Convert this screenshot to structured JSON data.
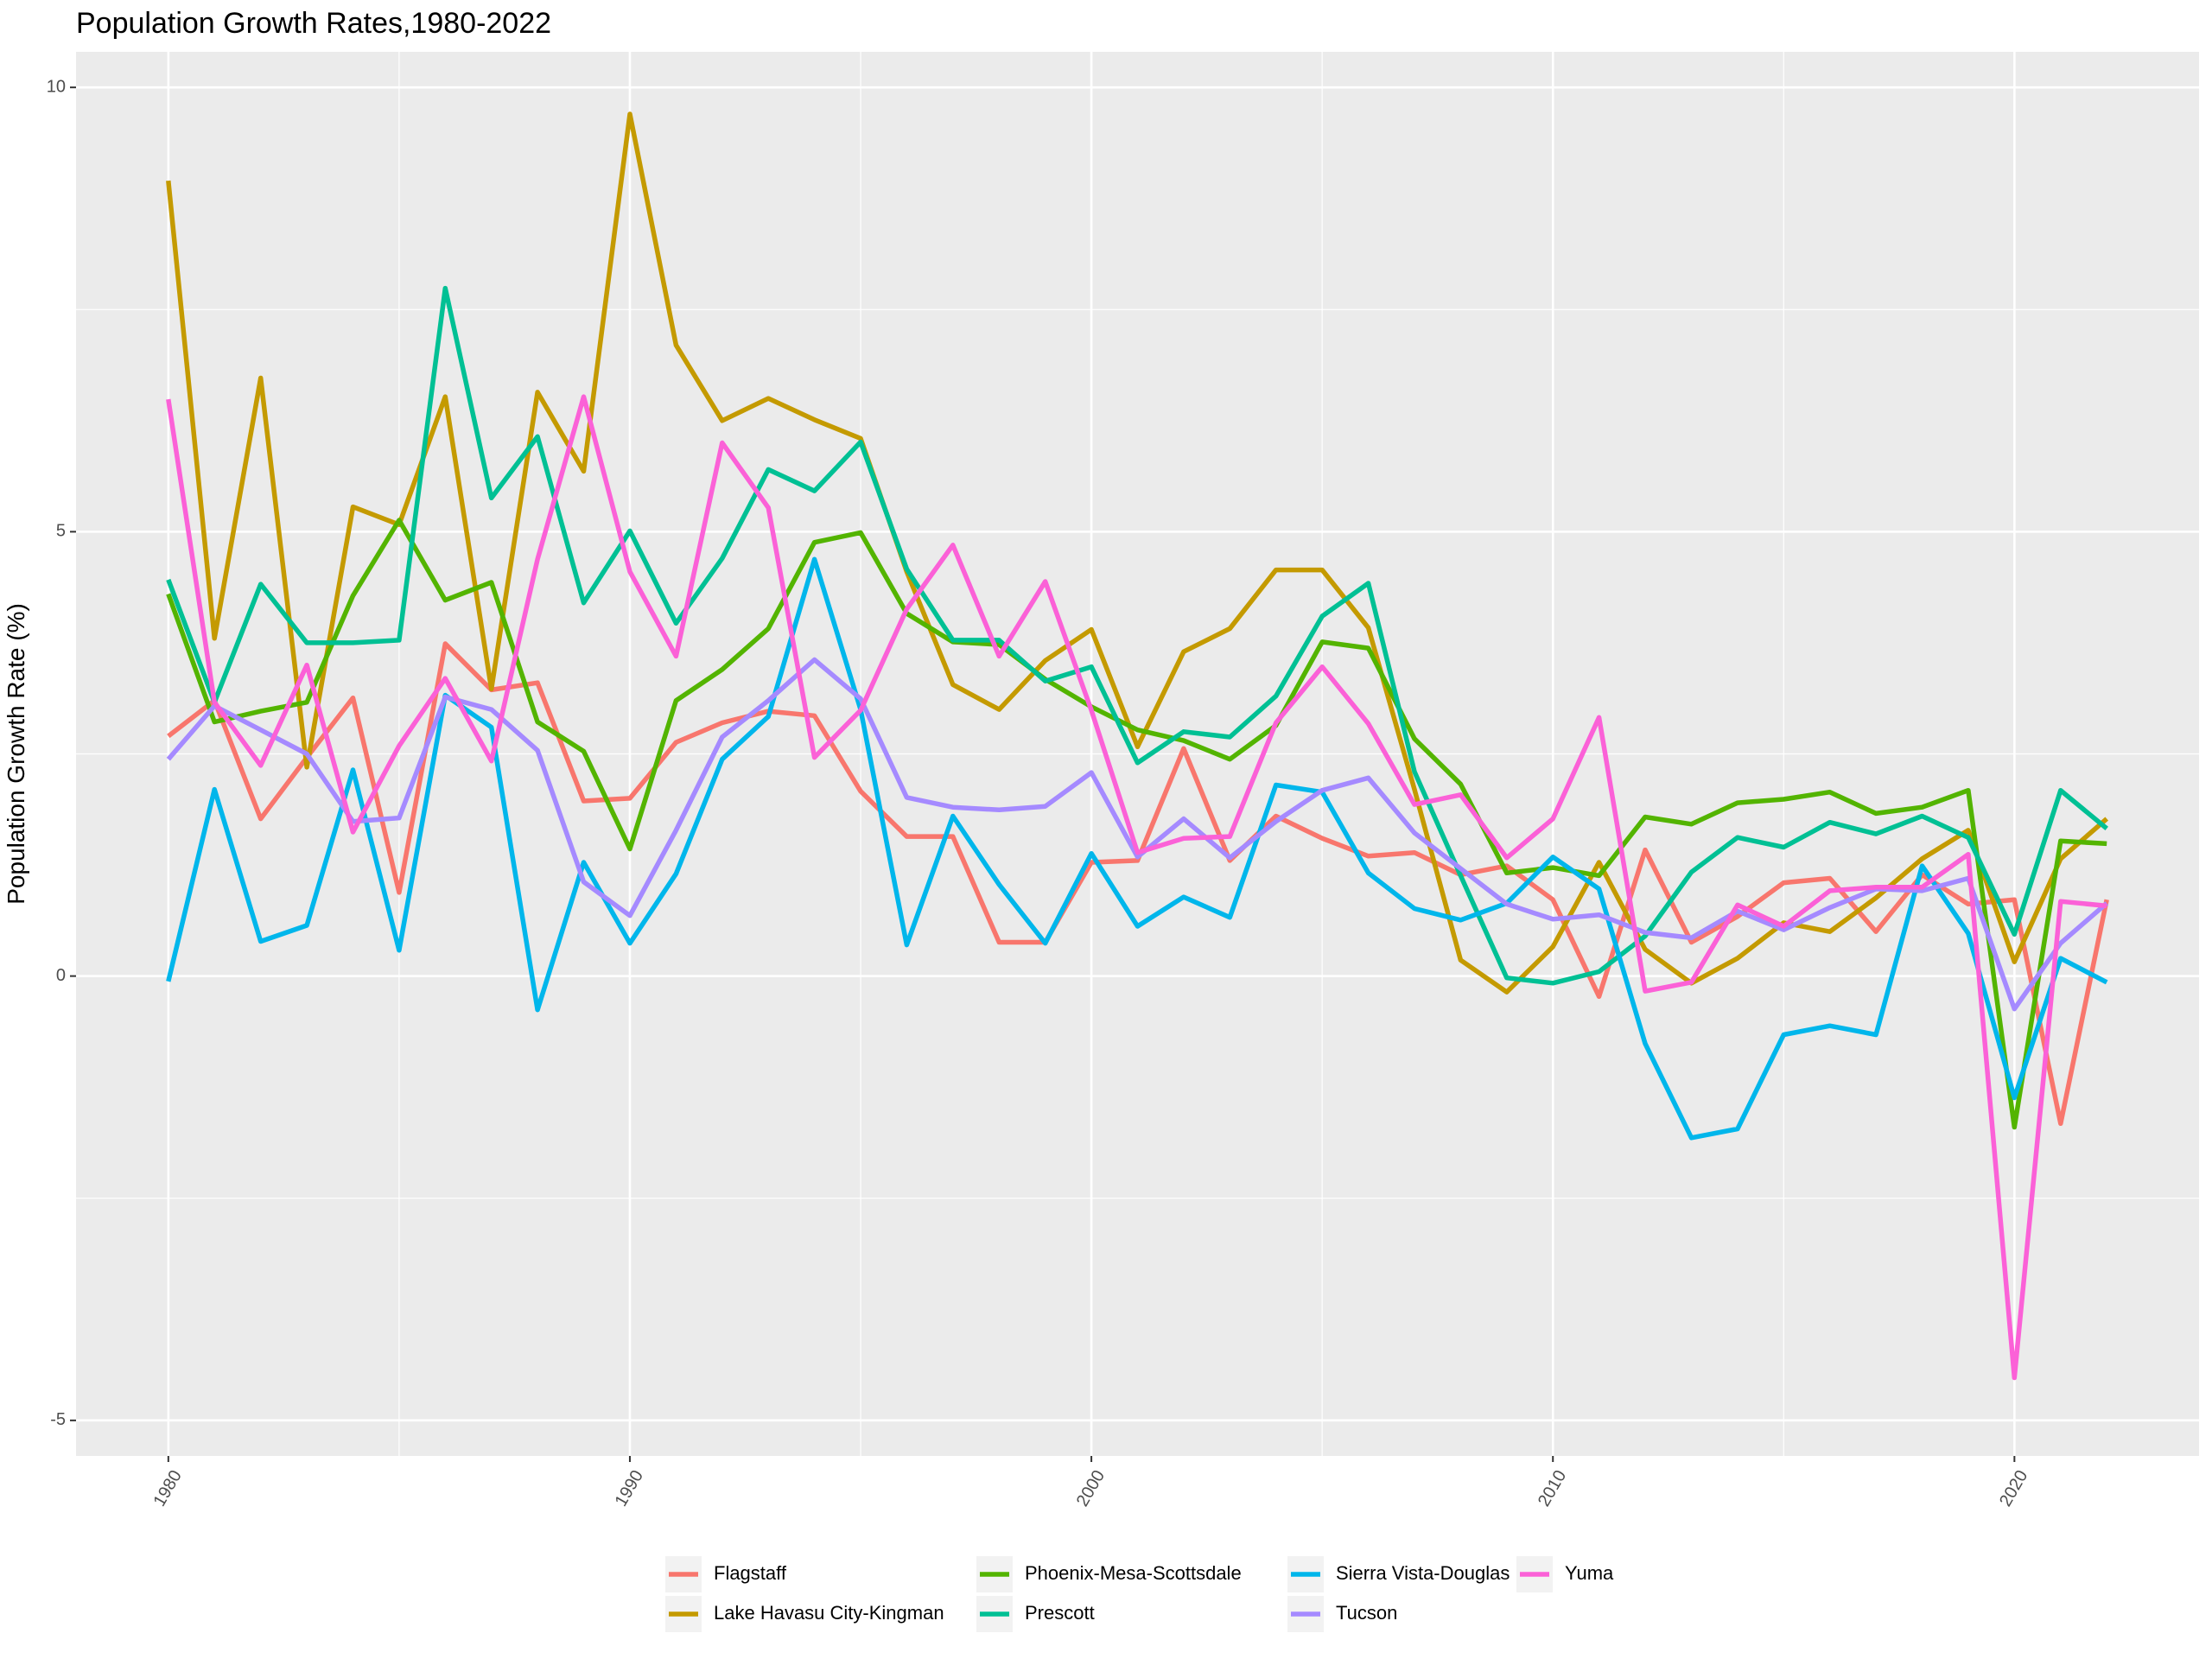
{
  "chart_data": {
    "type": "line",
    "title": "Population Growth Rates,1980-2022",
    "xlabel": "",
    "ylabel": "Population Growth Rate (%)",
    "xlim": [
      1978,
      2024
    ],
    "ylim": [
      -5.4,
      10.4
    ],
    "x_ticks": [
      1980,
      1990,
      2000,
      2010,
      2020
    ],
    "y_ticks": [
      -5,
      0,
      5,
      10
    ],
    "x_tick_labels": [
      "1980",
      "1990",
      "2000",
      "2010",
      "2020"
    ],
    "y_tick_labels": [
      "-5",
      "0",
      "5",
      "10"
    ],
    "grid": true,
    "legend_position": "bottom",
    "x": [
      1980,
      1981,
      1982,
      1983,
      1984,
      1985,
      1986,
      1987,
      1988,
      1989,
      1990,
      1991,
      1992,
      1993,
      1994,
      1995,
      1996,
      1997,
      1998,
      1999,
      2000,
      2001,
      2002,
      2003,
      2004,
      2005,
      2006,
      2007,
      2008,
      2009,
      2010,
      2011,
      2012,
      2013,
      2014,
      2015,
      2016,
      2017,
      2018,
      2019,
      2020,
      2021,
      2022
    ],
    "series": [
      {
        "name": "Flagstaff",
        "color": "#F8766D",
        "values": [
          2.7,
          3.1,
          1.77,
          2.46,
          3.13,
          0.94,
          3.74,
          3.22,
          3.3,
          1.97,
          2.0,
          2.63,
          2.85,
          2.98,
          2.93,
          2.08,
          1.57,
          1.57,
          0.38,
          0.38,
          1.28,
          1.3,
          2.56,
          1.3,
          1.8,
          1.55,
          1.35,
          1.39,
          1.14,
          1.24,
          0.86,
          -0.23,
          1.42,
          0.38,
          0.67,
          1.05,
          1.1,
          0.5,
          1.14,
          0.81,
          0.86,
          -1.66,
          0.86
        ]
      },
      {
        "name": "Lake Havasu City-Kingman",
        "color": "#C49A00",
        "values": [
          8.95,
          3.8,
          6.73,
          2.35,
          5.28,
          5.08,
          6.52,
          3.23,
          6.57,
          5.68,
          9.7,
          7.1,
          6.25,
          6.5,
          6.26,
          6.05,
          4.55,
          3.28,
          3.0,
          3.55,
          3.9,
          2.58,
          3.65,
          3.91,
          4.57,
          4.57,
          3.92,
          2.1,
          0.18,
          -0.18,
          0.33,
          1.28,
          0.3,
          -0.08,
          0.2,
          0.6,
          0.5,
          0.88,
          1.32,
          1.64,
          0.16,
          1.32,
          1.77
        ]
      },
      {
        "name": "Phoenix-Mesa-Scottsdale",
        "color": "#53B400",
        "values": [
          4.3,
          2.86,
          2.98,
          3.08,
          4.28,
          5.13,
          4.23,
          4.43,
          2.86,
          2.53,
          1.43,
          3.1,
          3.45,
          3.91,
          4.88,
          4.99,
          4.08,
          3.76,
          3.73,
          3.34,
          3.03,
          2.77,
          2.65,
          2.44,
          2.82,
          3.76,
          3.69,
          2.67,
          2.16,
          1.16,
          1.22,
          1.13,
          1.79,
          1.71,
          1.95,
          1.99,
          2.07,
          1.83,
          1.9,
          2.09,
          -1.7,
          1.52,
          1.49
        ]
      },
      {
        "name": "Prescott",
        "color": "#00C094",
        "values": [
          4.46,
          3.08,
          4.41,
          3.75,
          3.75,
          3.78,
          7.74,
          5.38,
          6.07,
          4.2,
          5.01,
          3.97,
          4.7,
          5.7,
          5.46,
          6.01,
          4.58,
          3.78,
          3.78,
          3.32,
          3.48,
          2.4,
          2.75,
          2.69,
          3.15,
          4.05,
          4.42,
          2.3,
          1.13,
          -0.02,
          -0.08,
          0.05,
          0.45,
          1.17,
          1.56,
          1.45,
          1.73,
          1.6,
          1.8,
          1.56,
          0.47,
          2.09,
          1.66
        ]
      },
      {
        "name": "Sierra Vista-Douglas",
        "color": "#00B6EB",
        "values": [
          -0.06,
          2.1,
          0.39,
          0.57,
          2.32,
          0.29,
          3.16,
          2.8,
          -0.38,
          1.28,
          0.37,
          1.15,
          2.44,
          2.92,
          4.69,
          3.0,
          0.35,
          1.8,
          1.03,
          0.37,
          1.38,
          0.56,
          0.89,
          0.66,
          2.15,
          2.07,
          1.16,
          0.76,
          0.63,
          0.82,
          1.34,
          0.98,
          -0.76,
          -1.82,
          -1.72,
          -0.66,
          -0.56,
          -0.66,
          1.24,
          0.48,
          -1.37,
          0.2,
          -0.07
        ]
      },
      {
        "name": "Tucson",
        "color": "#A58AFF",
        "values": [
          2.44,
          3.04,
          2.77,
          2.5,
          1.74,
          1.78,
          3.14,
          3.0,
          2.54,
          1.06,
          0.68,
          1.64,
          2.69,
          3.1,
          3.56,
          3.12,
          2.01,
          1.9,
          1.87,
          1.91,
          2.29,
          1.34,
          1.77,
          1.33,
          1.74,
          2.09,
          2.23,
          1.61,
          1.21,
          0.81,
          0.64,
          0.69,
          0.49,
          0.43,
          0.73,
          0.52,
          0.77,
          0.98,
          0.96,
          1.1,
          -0.37,
          0.37,
          0.82
        ]
      },
      {
        "name": "Yuma",
        "color": "#FB61D7",
        "values": [
          6.49,
          3.08,
          2.37,
          3.5,
          1.62,
          2.59,
          3.35,
          2.42,
          4.69,
          6.52,
          4.55,
          3.6,
          6.0,
          5.27,
          2.46,
          2.99,
          4.13,
          4.85,
          3.6,
          4.44,
          2.99,
          1.39,
          1.55,
          1.57,
          2.85,
          3.48,
          2.84,
          1.93,
          2.04,
          1.33,
          1.77,
          2.91,
          -0.17,
          -0.07,
          0.8,
          0.56,
          0.96,
          1.0,
          1.0,
          1.37,
          -4.52,
          0.84,
          0.79
        ]
      }
    ]
  }
}
